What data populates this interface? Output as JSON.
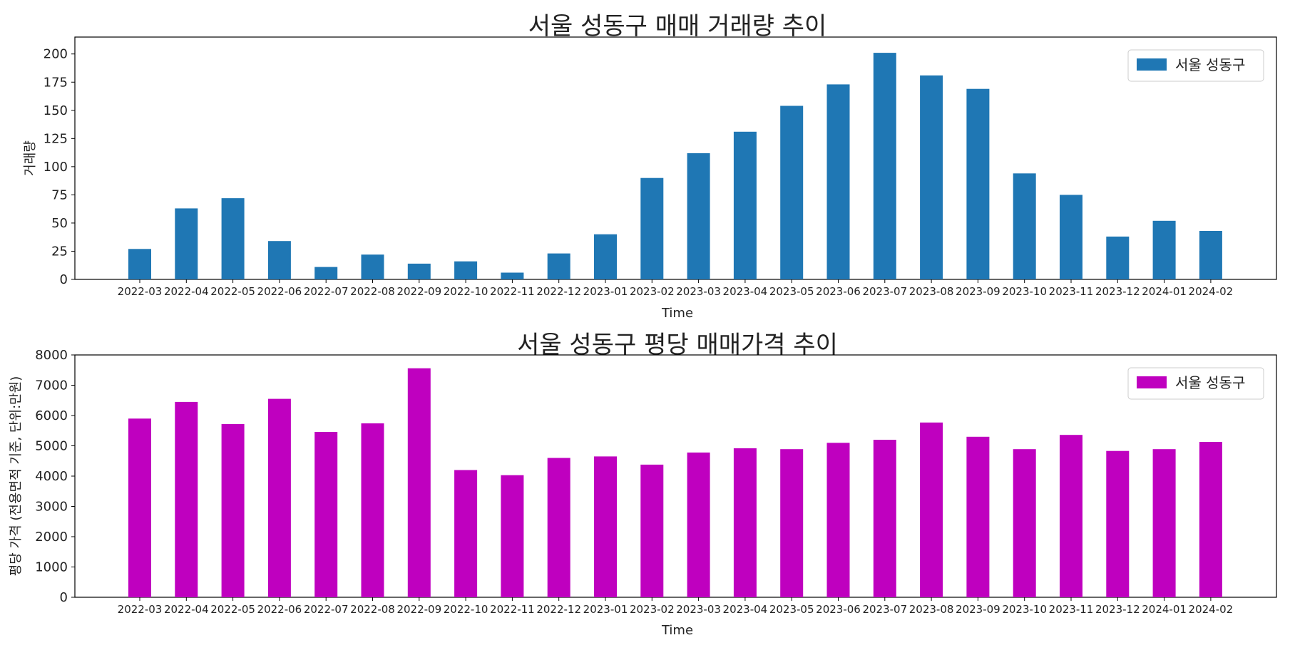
{
  "chart_data": [
    {
      "type": "bar",
      "title": "서울 성동구 매매 거래량 추이",
      "xlabel": "Time",
      "ylabel": "거래량",
      "categories": [
        "2022-03",
        "2022-04",
        "2022-05",
        "2022-06",
        "2022-07",
        "2022-08",
        "2022-09",
        "2022-10",
        "2022-11",
        "2022-12",
        "2023-01",
        "2023-02",
        "2023-03",
        "2023-04",
        "2023-05",
        "2023-06",
        "2023-07",
        "2023-08",
        "2023-09",
        "2023-10",
        "2023-11",
        "2023-12",
        "2024-01",
        "2024-02"
      ],
      "series": [
        {
          "name": "서울 성동구",
          "values": [
            27,
            63,
            72,
            34,
            11,
            22,
            14,
            16,
            6,
            23,
            40,
            90,
            112,
            131,
            154,
            173,
            201,
            181,
            169,
            94,
            75,
            38,
            52,
            43
          ]
        }
      ],
      "ylim": [
        0,
        215
      ],
      "yticks": [
        "0",
        "25",
        "50",
        "75",
        "100",
        "125",
        "150",
        "175",
        "200"
      ],
      "color": "#1f77b4",
      "legend": "top-right",
      "grid": false
    },
    {
      "type": "bar",
      "title": "서울 성동구 평당 매매가격 추이",
      "xlabel": "Time",
      "ylabel": "평당 가격 (전용면적 기준, 단위:만원)",
      "categories": [
        "2022-03",
        "2022-04",
        "2022-05",
        "2022-06",
        "2022-07",
        "2022-08",
        "2022-09",
        "2022-10",
        "2022-11",
        "2022-12",
        "2023-01",
        "2023-02",
        "2023-03",
        "2023-04",
        "2023-05",
        "2023-06",
        "2023-07",
        "2023-08",
        "2023-09",
        "2023-10",
        "2023-11",
        "2023-12",
        "2024-01",
        "2024-02"
      ],
      "series": [
        {
          "name": "서울 성동구",
          "values": [
            5900,
            6450,
            5720,
            6550,
            5460,
            5740,
            7560,
            4200,
            4030,
            4600,
            4650,
            4380,
            4780,
            4920,
            4890,
            5100,
            5200,
            5770,
            5300,
            4890,
            5360,
            4830,
            4890,
            5130
          ]
        }
      ],
      "ylim": [
        0,
        8000
      ],
      "yticks": [
        "0",
        "1000",
        "2000",
        "3000",
        "4000",
        "5000",
        "6000",
        "7000",
        "8000"
      ],
      "color": "#bf00bf",
      "legend": "top-right",
      "grid": false
    }
  ]
}
